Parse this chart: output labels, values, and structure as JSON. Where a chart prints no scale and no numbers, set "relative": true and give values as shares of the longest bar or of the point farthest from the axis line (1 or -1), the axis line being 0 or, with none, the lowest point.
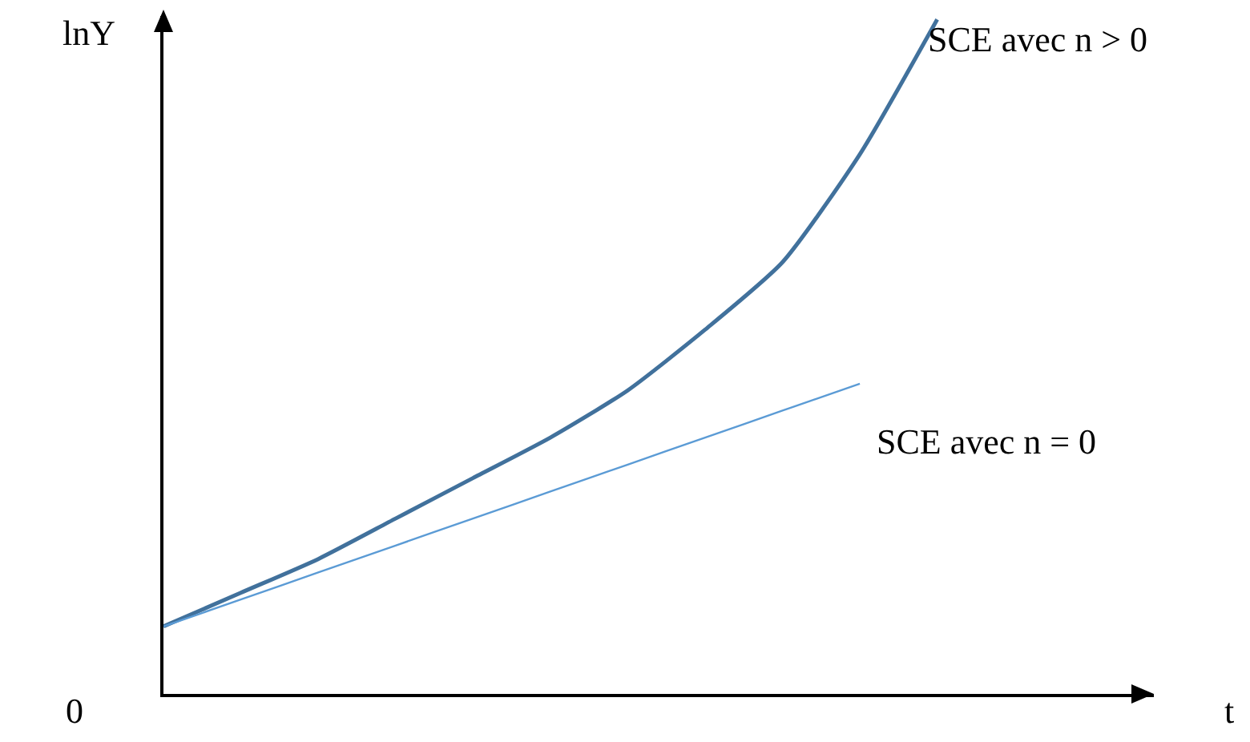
{
  "chart_data": {
    "type": "line",
    "relative": true,
    "legend": false,
    "ylabel": "lnY",
    "annotations": [
      "0",
      "t"
    ],
    "categories": [
      null,
      null,
      null,
      null,
      null,
      null,
      null,
      null,
      null,
      null,
      null
    ],
    "series": [
      {
        "name": "SCE avec n > 0",
        "color": "#41719c",
        "values": [
          0.1,
          0.15,
          0.2,
          0.26,
          0.32,
          0.38,
          0.45,
          0.54,
          0.64,
          0.8,
          1.0
        ]
      },
      {
        "name": "SCE avec n = 0",
        "color": "#5b9bd5",
        "values": [
          0.1,
          0.14,
          0.18,
          0.22,
          0.26,
          0.3,
          0.34,
          0.38,
          0.42,
          0.46,
          null
        ]
      }
    ]
  }
}
